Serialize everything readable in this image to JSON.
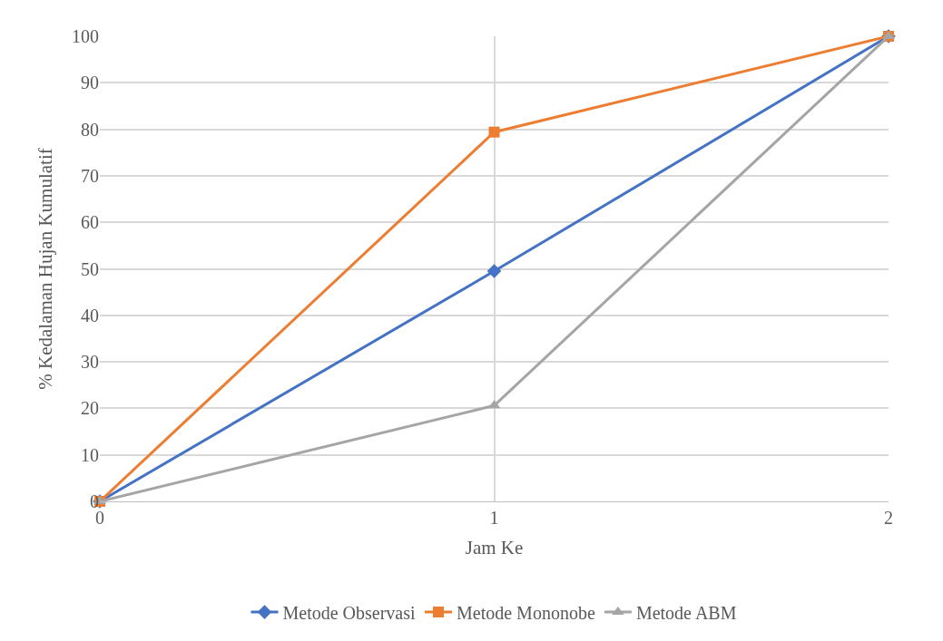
{
  "chart_data": {
    "type": "line",
    "xlabel": "Jam Ke",
    "ylabel": "% Kedalaman Hujan Kumulatif",
    "x": [
      0,
      1,
      2
    ],
    "xlim": [
      0,
      2
    ],
    "xticks": [
      0,
      1,
      2
    ],
    "ylim": [
      0,
      100
    ],
    "yticks": [
      0,
      10,
      20,
      30,
      40,
      50,
      60,
      70,
      80,
      90,
      100
    ],
    "grid": true,
    "legend": "bottom",
    "series": [
      {
        "name": "Metode Observasi",
        "color": "#4472c4",
        "marker": "diamond",
        "values": [
          0,
          49.5,
          100
        ]
      },
      {
        "name": "Metode Mononobe",
        "color": "#ed7d31",
        "marker": "square",
        "values": [
          0,
          79.4,
          100
        ]
      },
      {
        "name": "Metode ABM",
        "color": "#a5a5a5",
        "marker": "triangle",
        "values": [
          0,
          20.6,
          100
        ]
      }
    ]
  }
}
